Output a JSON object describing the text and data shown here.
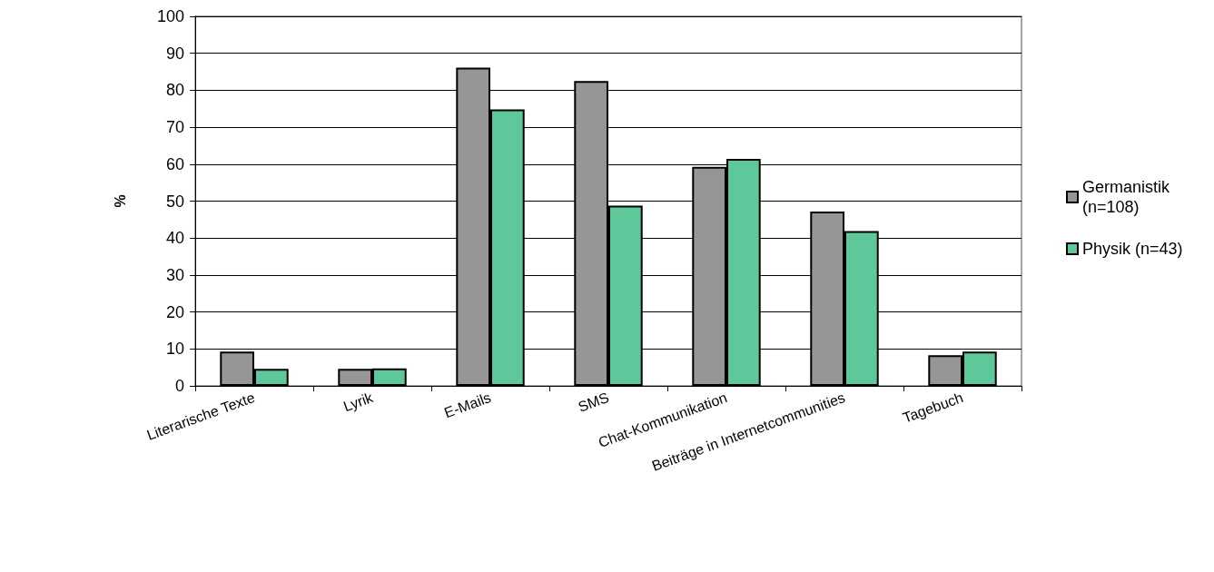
{
  "chart_data": {
    "type": "bar",
    "ylabel": "%",
    "categories": [
      "Literarische Texte",
      "Lyrik",
      "E-Mails",
      "SMS",
      "Chat-Kommunikation",
      "Beiträge in Internetcommunities",
      "Tagebuch"
    ],
    "series": [
      {
        "name": "Germanistik (n=108)",
        "color": "#969696",
        "values": [
          9.3,
          4.6,
          86.1,
          82.5,
          59.3,
          47.2,
          8.3
        ]
      },
      {
        "name": "Physik (n=43)",
        "color": "#5fc89b",
        "values": [
          4.6,
          4.7,
          74.8,
          48.8,
          61.4,
          41.9,
          9.3
        ]
      }
    ],
    "ylim": [
      0,
      100
    ],
    "yticks": [
      0,
      10,
      20,
      30,
      40,
      50,
      60,
      70,
      80,
      90,
      100
    ],
    "grid": "y",
    "legend": "right"
  }
}
